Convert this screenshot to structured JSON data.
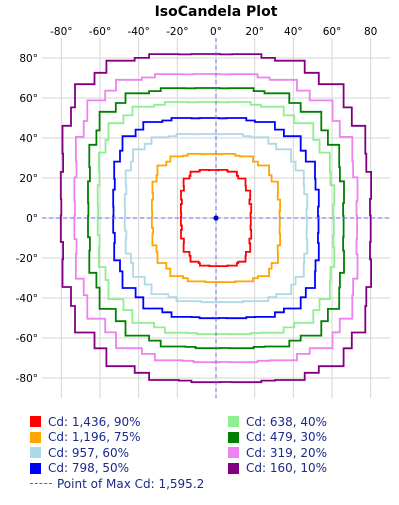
{
  "chart_data": {
    "type": "line",
    "title": "IsoCandela Plot",
    "x_ticks": [
      "-80°",
      "-60°",
      "-40°",
      "-20°",
      "0°",
      "20°",
      "40°",
      "60°",
      "80"
    ],
    "y_ticks": [
      "80°",
      "60°",
      "40°",
      "20°",
      "0°",
      "-20°",
      "-40°",
      "-60°",
      "-80°"
    ],
    "xlim": [
      -90,
      90
    ],
    "ylim": [
      -90,
      90
    ],
    "grid": true,
    "legend_position": "bottom",
    "series": [
      {
        "name": "Cd: 1,436, 90%",
        "color": "#ff0000",
        "half_width": 18,
        "half_height": 24
      },
      {
        "name": "Cd: 1,196, 75%",
        "color": "#ffa500",
        "half_width": 33,
        "half_height": 32
      },
      {
        "name": "Cd: 957, 60%",
        "color": "#add8e6",
        "half_width": 47,
        "half_height": 42
      },
      {
        "name": "Cd: 798, 50%",
        "color": "#0000ff",
        "half_width": 53,
        "half_height": 50
      },
      {
        "name": "Cd: 638, 40%",
        "color": "#90ee90",
        "half_width": 61,
        "half_height": 58
      },
      {
        "name": "Cd: 479, 30%",
        "color": "#008000",
        "half_width": 66,
        "half_height": 65
      },
      {
        "name": "Cd: 319, 20%",
        "color": "#ee82ee",
        "half_width": 73,
        "half_height": 72
      },
      {
        "name": "Cd: 160, 10%",
        "color": "#800080",
        "half_width": 80,
        "half_height": 82
      }
    ],
    "max_point": {
      "label": "Point of Max Cd: 1,595.2",
      "x": 0,
      "y": 0,
      "color": "#0000cc"
    }
  }
}
